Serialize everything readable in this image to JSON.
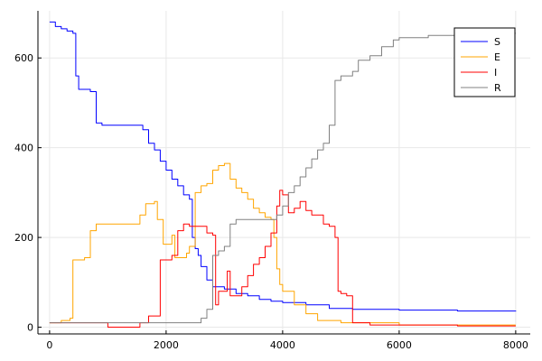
{
  "chart_data": {
    "type": "line",
    "title": "",
    "xlabel": "",
    "ylabel": "",
    "xlim": [
      -200,
      8250
    ],
    "ylim": [
      -15,
      705
    ],
    "x_ticks": [
      0,
      2000,
      4000,
      6000,
      8000
    ],
    "y_ticks": [
      0,
      200,
      400,
      600
    ],
    "x_tick_labels": [
      "0",
      "2000",
      "4000",
      "6000",
      "8000"
    ],
    "y_tick_labels": [
      "0",
      "200",
      "400",
      "600"
    ],
    "grid": true,
    "legend": {
      "position": "top-right",
      "entries": [
        "S",
        "E",
        "I",
        "R"
      ]
    },
    "series": [
      {
        "name": "S",
        "color": "#0000ff",
        "points": [
          [
            0,
            680
          ],
          [
            100,
            670
          ],
          [
            200,
            665
          ],
          [
            300,
            660
          ],
          [
            400,
            655
          ],
          [
            450,
            560
          ],
          [
            500,
            530
          ],
          [
            700,
            525
          ],
          [
            800,
            455
          ],
          [
            900,
            450
          ],
          [
            1500,
            450
          ],
          [
            1600,
            440
          ],
          [
            1700,
            410
          ],
          [
            1800,
            395
          ],
          [
            1900,
            370
          ],
          [
            2000,
            350
          ],
          [
            2100,
            330
          ],
          [
            2200,
            315
          ],
          [
            2300,
            295
          ],
          [
            2400,
            285
          ],
          [
            2450,
            200
          ],
          [
            2500,
            175
          ],
          [
            2550,
            160
          ],
          [
            2600,
            135
          ],
          [
            2700,
            105
          ],
          [
            2800,
            90
          ],
          [
            3000,
            85
          ],
          [
            3200,
            75
          ],
          [
            3400,
            70
          ],
          [
            3600,
            62
          ],
          [
            3800,
            58
          ],
          [
            4000,
            55
          ],
          [
            4400,
            50
          ],
          [
            4800,
            42
          ],
          [
            5200,
            40
          ],
          [
            6000,
            38
          ],
          [
            7000,
            36
          ],
          [
            8000,
            35
          ]
        ]
      },
      {
        "name": "E",
        "color": "#ffa500",
        "points": [
          [
            0,
            10
          ],
          [
            200,
            15
          ],
          [
            350,
            20
          ],
          [
            400,
            150
          ],
          [
            600,
            155
          ],
          [
            700,
            215
          ],
          [
            800,
            230
          ],
          [
            1500,
            230
          ],
          [
            1550,
            250
          ],
          [
            1650,
            275
          ],
          [
            1800,
            280
          ],
          [
            1850,
            240
          ],
          [
            1950,
            185
          ],
          [
            2100,
            205
          ],
          [
            2150,
            155
          ],
          [
            2350,
            165
          ],
          [
            2400,
            180
          ],
          [
            2500,
            300
          ],
          [
            2600,
            315
          ],
          [
            2700,
            320
          ],
          [
            2800,
            350
          ],
          [
            2900,
            360
          ],
          [
            3000,
            365
          ],
          [
            3100,
            330
          ],
          [
            3200,
            310
          ],
          [
            3300,
            300
          ],
          [
            3400,
            285
          ],
          [
            3500,
            265
          ],
          [
            3600,
            255
          ],
          [
            3700,
            245
          ],
          [
            3800,
            240
          ],
          [
            3850,
            200
          ],
          [
            3900,
            130
          ],
          [
            3950,
            95
          ],
          [
            4000,
            80
          ],
          [
            4200,
            50
          ],
          [
            4400,
            30
          ],
          [
            4600,
            15
          ],
          [
            5000,
            10
          ],
          [
            6000,
            5
          ],
          [
            8000,
            5
          ]
        ]
      },
      {
        "name": "I",
        "color": "#ff0000",
        "points": [
          [
            0,
            10
          ],
          [
            900,
            10
          ],
          [
            1000,
            0
          ],
          [
            1500,
            0
          ],
          [
            1550,
            10
          ],
          [
            1700,
            25
          ],
          [
            1800,
            25
          ],
          [
            1900,
            150
          ],
          [
            2100,
            160
          ],
          [
            2200,
            215
          ],
          [
            2300,
            230
          ],
          [
            2400,
            225
          ],
          [
            2500,
            225
          ],
          [
            2700,
            210
          ],
          [
            2800,
            205
          ],
          [
            2850,
            50
          ],
          [
            2900,
            80
          ],
          [
            3000,
            80
          ],
          [
            3050,
            125
          ],
          [
            3100,
            70
          ],
          [
            3200,
            70
          ],
          [
            3300,
            90
          ],
          [
            3400,
            115
          ],
          [
            3500,
            140
          ],
          [
            3600,
            155
          ],
          [
            3700,
            180
          ],
          [
            3800,
            210
          ],
          [
            3850,
            210
          ],
          [
            3900,
            270
          ],
          [
            3950,
            305
          ],
          [
            4000,
            295
          ],
          [
            4100,
            255
          ],
          [
            4200,
            265
          ],
          [
            4300,
            280
          ],
          [
            4400,
            260
          ],
          [
            4500,
            250
          ],
          [
            4600,
            250
          ],
          [
            4700,
            230
          ],
          [
            4800,
            225
          ],
          [
            4900,
            200
          ],
          [
            4950,
            80
          ],
          [
            5000,
            75
          ],
          [
            5100,
            70
          ],
          [
            5200,
            10
          ],
          [
            5500,
            5
          ],
          [
            6000,
            5
          ],
          [
            7000,
            3
          ],
          [
            8000,
            3
          ]
        ]
      },
      {
        "name": "R",
        "color": "#808080",
        "points": [
          [
            0,
            10
          ],
          [
            2400,
            10
          ],
          [
            2600,
            20
          ],
          [
            2700,
            40
          ],
          [
            2800,
            160
          ],
          [
            2900,
            170
          ],
          [
            3000,
            180
          ],
          [
            3100,
            230
          ],
          [
            3200,
            240
          ],
          [
            3800,
            240
          ],
          [
            3900,
            250
          ],
          [
            4000,
            270
          ],
          [
            4100,
            300
          ],
          [
            4200,
            315
          ],
          [
            4300,
            335
          ],
          [
            4400,
            355
          ],
          [
            4500,
            375
          ],
          [
            4600,
            395
          ],
          [
            4700,
            410
          ],
          [
            4800,
            450
          ],
          [
            4900,
            550
          ],
          [
            5000,
            560
          ],
          [
            5200,
            570
          ],
          [
            5300,
            595
          ],
          [
            5500,
            605
          ],
          [
            5700,
            625
          ],
          [
            5900,
            640
          ],
          [
            6000,
            645
          ],
          [
            6500,
            650
          ],
          [
            7000,
            652
          ],
          [
            7500,
            655
          ],
          [
            8000,
            655
          ]
        ]
      }
    ]
  }
}
